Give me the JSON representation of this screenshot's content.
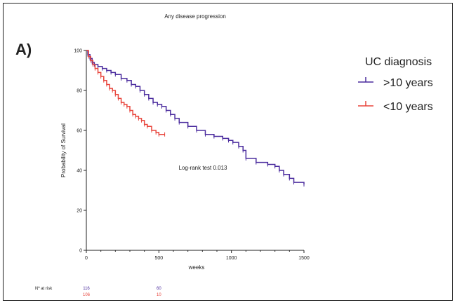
{
  "panel_label": "A)",
  "chart_data": {
    "type": "line",
    "subtype": "kaplan-meier",
    "title": "Any disease progression",
    "xlabel": "weeks",
    "ylabel": "Probability of Survival",
    "xlim": [
      0,
      1500
    ],
    "ylim": [
      0,
      100
    ],
    "xticks": [
      "0",
      "500",
      "1000",
      "1500"
    ],
    "yticks": [
      "0",
      "20",
      "40",
      "60",
      "80",
      "100"
    ],
    "grid": false,
    "legend": {
      "title": "UC diagnosis",
      "position": "top-right"
    },
    "annotation": "Log-rank test 0.013",
    "series": [
      {
        "name": ">10 years",
        "color": "#4b2c9e",
        "x": [
          0,
          10,
          25,
          40,
          55,
          80,
          110,
          140,
          170,
          200,
          240,
          280,
          310,
          340,
          370,
          400,
          430,
          460,
          490,
          520,
          550,
          580,
          610,
          640,
          700,
          760,
          820,
          880,
          940,
          980,
          1010,
          1050,
          1080,
          1100,
          1170,
          1250,
          1300,
          1330,
          1360,
          1400,
          1430,
          1500
        ],
        "y": [
          100,
          98,
          96,
          94,
          93,
          92,
          91,
          90,
          89,
          88,
          86,
          85,
          83,
          82,
          80,
          78,
          76,
          74,
          73,
          72,
          70,
          68,
          66,
          64,
          62,
          60,
          58,
          57,
          56,
          55,
          54,
          52,
          50,
          46,
          44,
          43,
          42,
          40,
          38,
          36,
          34,
          33
        ]
      },
      {
        "name": "<10 years",
        "color": "#e8453c",
        "x": [
          0,
          15,
          30,
          45,
          60,
          80,
          100,
          120,
          140,
          160,
          180,
          200,
          220,
          240,
          260,
          280,
          300,
          320,
          340,
          360,
          380,
          400,
          420,
          450,
          480,
          500,
          540
        ],
        "y": [
          100,
          97,
          95,
          93,
          91,
          89,
          87,
          85,
          83,
          81,
          80,
          78,
          76,
          74,
          73,
          72,
          70,
          68,
          67,
          66,
          65,
          63,
          62,
          60,
          59,
          58,
          58
        ]
      }
    ],
    "risk_table": {
      "label": "Nº at risk",
      "columns": [
        "0",
        "500"
      ],
      "rows": [
        {
          "series": ">10 years",
          "values": [
            "116",
            "60"
          ]
        },
        {
          "series": "<10 years",
          "values": [
            "106",
            "10"
          ]
        }
      ]
    }
  }
}
